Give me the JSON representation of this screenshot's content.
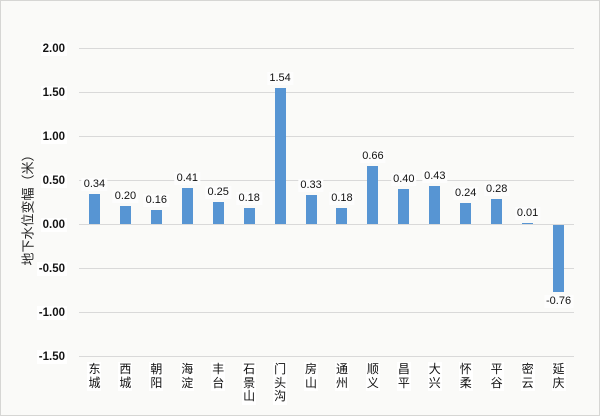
{
  "chart_data": {
    "type": "bar",
    "title": "",
    "xlabel": "",
    "ylabel": "地下水位变幅（米）",
    "categories": [
      "东城",
      "西城",
      "朝阳",
      "海淀",
      "丰台",
      "石景山",
      "门头沟",
      "房山",
      "通州",
      "顺义",
      "昌平",
      "大兴",
      "怀柔",
      "平谷",
      "密云",
      "延庆"
    ],
    "values": [
      0.34,
      0.2,
      0.16,
      0.41,
      0.25,
      0.18,
      1.54,
      0.33,
      0.18,
      0.66,
      0.4,
      0.43,
      0.24,
      0.28,
      0.01,
      -0.76
    ],
    "value_labels": [
      "0.34",
      "0.20",
      "0.16",
      "0.41",
      "0.25",
      "0.18",
      "1.54",
      "0.33",
      "0.18",
      "0.66",
      "0.40",
      "0.43",
      "0.24",
      "0.28",
      "0.01",
      "-0.76"
    ],
    "yticks": [
      2.0,
      1.5,
      1.0,
      0.5,
      0.0,
      -0.5,
      -1.0,
      -1.5
    ],
    "ytick_labels": [
      "2.00",
      "1.50",
      "1.00",
      "0.50",
      "0.00",
      "-0.50",
      "-1.00",
      "-1.50"
    ],
    "ylim": [
      -1.5,
      2.0
    ],
    "grid": true,
    "legend_position": "none",
    "bar_color": "#5795D3",
    "gridline_color": "#d9d9d9",
    "data_labels_shown": true
  }
}
